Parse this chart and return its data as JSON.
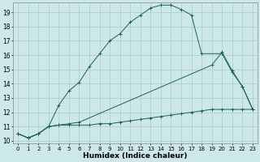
{
  "xlabel": "Humidex (Indice chaleur)",
  "background_color": "#cde8e8",
  "grid_color": "#aacccc",
  "line_color": "#1a6060",
  "xlim": [
    -0.5,
    23.5
  ],
  "ylim": [
    9.8,
    19.7
  ],
  "xticks": [
    0,
    1,
    2,
    3,
    4,
    5,
    6,
    7,
    8,
    9,
    10,
    11,
    12,
    13,
    14,
    15,
    16,
    17,
    18,
    19,
    20,
    21,
    22,
    23
  ],
  "yticks": [
    10,
    11,
    12,
    13,
    14,
    15,
    16,
    17,
    18,
    19
  ],
  "series1_x": [
    0,
    1,
    2,
    3,
    4,
    5,
    6,
    7,
    8,
    9,
    10,
    11,
    12,
    13,
    14,
    15,
    16,
    17,
    18,
    19,
    20,
    21,
    22,
    23
  ],
  "series1_y": [
    10.5,
    10.2,
    10.5,
    11.0,
    11.1,
    11.1,
    11.1,
    11.1,
    11.2,
    11.2,
    11.3,
    11.4,
    11.5,
    11.6,
    11.7,
    11.8,
    11.9,
    12.0,
    12.1,
    12.2,
    12.2,
    12.2,
    12.2,
    12.2
  ],
  "series2_x": [
    0,
    1,
    2,
    3,
    4,
    5,
    6,
    7,
    8,
    9,
    10,
    11,
    12,
    13,
    14,
    15,
    16,
    17,
    18,
    20,
    21,
    22,
    23
  ],
  "series2_y": [
    10.5,
    10.2,
    10.5,
    11.0,
    12.5,
    13.5,
    14.1,
    15.2,
    16.1,
    17.0,
    17.5,
    18.3,
    18.8,
    19.3,
    19.5,
    19.5,
    19.2,
    18.8,
    16.1,
    16.1,
    14.8,
    13.8,
    12.2
  ],
  "series3_x": [
    0,
    1,
    2,
    3,
    4,
    5,
    6,
    19,
    20,
    21,
    22,
    23
  ],
  "series3_y": [
    10.5,
    10.2,
    10.5,
    11.0,
    11.1,
    11.2,
    11.3,
    15.3,
    16.2,
    14.9,
    13.8,
    12.2
  ]
}
